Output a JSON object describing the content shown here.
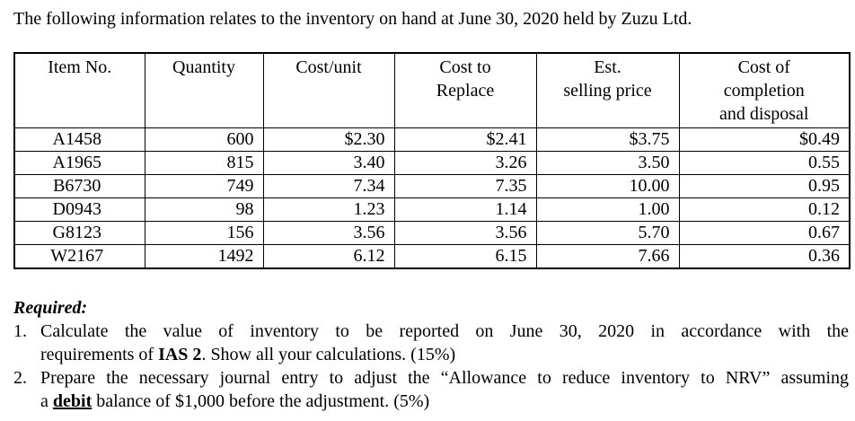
{
  "intro": "The following information relates to the inventory on hand at June 30, 2020 held by Zuzu Ltd.",
  "table": {
    "headers": [
      "Item No.",
      "Quantity",
      "Cost/unit",
      "Cost to\nReplace",
      "Est.\nselling price",
      "Cost of\ncompletion\nand disposal"
    ],
    "rows": [
      [
        "A1458",
        "600",
        "$2.30",
        "$2.41",
        "$3.75",
        "$0.49"
      ],
      [
        "A1965",
        "815",
        "3.40",
        "3.26",
        "3.50",
        "0.55"
      ],
      [
        "B6730",
        "749",
        "7.34",
        "7.35",
        "10.00",
        "0.95"
      ],
      [
        "D0943",
        "98",
        "1.23",
        "1.14",
        "1.00",
        "0.12"
      ],
      [
        "G8123",
        "156",
        "3.56",
        "3.56",
        "5.70",
        "0.67"
      ],
      [
        "W2167",
        "1492",
        "6.12",
        "6.15",
        "7.66",
        "0.36"
      ]
    ]
  },
  "required": {
    "heading": "Required:",
    "items": [
      {
        "number": "1.",
        "line1": "Calculate the value of inventory to be reported on June 30, 2020 in accordance with the",
        "line2_pre": "requirements of ",
        "line2_bold": "IAS 2",
        "line2_post": ". Show all your calculations. (15%)"
      },
      {
        "number": "2.",
        "line1": "Prepare the necessary journal entry to adjust the “Allowance to reduce inventory to NRV” assuming",
        "line2_pre": "a ",
        "line2_bold": "debit",
        "line2_post": " balance of $1,000 before the adjustment. (5%)"
      }
    ]
  }
}
